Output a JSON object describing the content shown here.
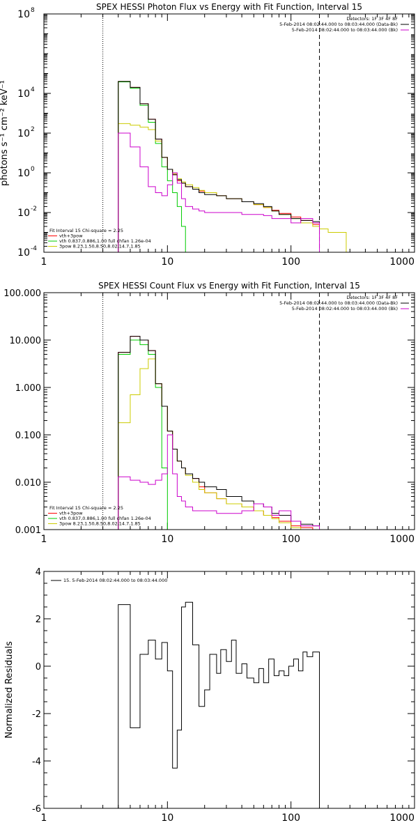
{
  "chart_data": [
    {
      "type": "line",
      "step": true,
      "title": "SPEX HESSI Photon Flux vs Energy with Fit Function, Interval 15",
      "ylabel": "photons s⁻¹ cm⁻² keV⁻¹",
      "xlabel": "",
      "xscale": "log",
      "yscale": "log",
      "xlim": [
        1,
        1000
      ],
      "ylim": [
        0.0001,
        100000000
      ],
      "x_ticks": [
        {
          "v": 1,
          "label": "1"
        },
        {
          "v": 10,
          "label": "10"
        },
        {
          "v": 100,
          "label": "100"
        },
        {
          "v": 1000,
          "label": "1000"
        }
      ],
      "y_ticks": [
        {
          "v": 0.0001,
          "label": "10",
          "sup": "-4"
        },
        {
          "v": 0.01,
          "label": "10",
          "sup": "-2"
        },
        {
          "v": 1,
          "label": "10",
          "sup": "0"
        },
        {
          "v": 100,
          "label": "10",
          "sup": "2"
        },
        {
          "v": 10000,
          "label": "10",
          "sup": "4"
        },
        {
          "v": 100000000,
          "label": "10",
          "sup": "8"
        }
      ],
      "vlines": [
        {
          "x": 3,
          "style": "dotted"
        },
        {
          "x": 170,
          "style": "dashed"
        }
      ],
      "legend_top": [
        {
          "text": "Detectors: 1F 3F 4F 8F",
          "color": "#000000"
        },
        {
          "text": "5-Feb-2014 08:02:44.000 to 08:03:44.000 (Data-Bk)",
          "color": "#000000"
        },
        {
          "text": "5-Feb-2014 08:02:44.000 to 08:03:44.000 (Bk)",
          "color": "#cc00cc"
        }
      ],
      "legend_bottom": [
        {
          "text": "Fit Interval 15   Chi-square = 2.25",
          "color": "#000000"
        },
        {
          "text": "vth+3pow",
          "color": "#ff0000"
        },
        {
          "text": "vth 0.837,0.886,1.00  full chfan 1.26e-04",
          "color": "#00cc00"
        },
        {
          "text": "3pow 8.23,1.50,8.50,8.02,14.7,1.85",
          "color": "#cccc00"
        }
      ],
      "series": [
        {
          "name": "vth+3pow",
          "color": "#ff0000",
          "x": [
            3,
            4,
            5,
            6,
            7,
            8,
            9,
            10,
            11,
            12,
            13,
            14,
            16,
            18,
            20,
            25,
            30,
            40,
            50,
            60,
            70,
            80,
            100,
            120,
            150,
            170
          ],
          "y": [
            0.0001,
            40000,
            20000,
            3000,
            500,
            50,
            6,
            1.5,
            0.8,
            0.4,
            0.3,
            0.2,
            0.15,
            0.12,
            0.1,
            0.07,
            0.05,
            0.035,
            0.025,
            0.018,
            0.013,
            0.009,
            0.006,
            0.004,
            0.0025,
            0.0025
          ]
        },
        {
          "name": "vth",
          "color": "#00cc00",
          "x": [
            3,
            4,
            5,
            6,
            7,
            8,
            9,
            10,
            11,
            12,
            13,
            14
          ],
          "y": [
            0.0001,
            38000,
            18000,
            2500,
            350,
            30,
            2,
            0.4,
            0.1,
            0.02,
            0.002,
            0.0001
          ]
        },
        {
          "name": "3pow",
          "color": "#cccc00",
          "x": [
            3,
            4,
            5,
            6,
            7,
            8,
            9,
            10,
            11,
            12,
            13,
            14,
            16,
            18,
            20,
            25,
            30,
            40,
            50,
            60,
            70,
            80,
            100,
            120,
            150,
            170,
            200,
            280
          ],
          "y": [
            0.0001,
            300,
            250,
            200,
            150,
            40,
            6,
            1.5,
            0.9,
            0.5,
            0.35,
            0.25,
            0.18,
            0.13,
            0.1,
            0.07,
            0.05,
            0.035,
            0.025,
            0.018,
            0.012,
            0.008,
            0.005,
            0.003,
            0.002,
            0.0015,
            0.001,
            0.0001
          ]
        },
        {
          "name": "Data-Bk",
          "color": "#000000",
          "x": [
            3,
            4,
            5,
            6,
            7,
            8,
            9,
            10,
            11,
            12,
            13,
            14,
            16,
            18,
            20,
            25,
            30,
            40,
            50,
            60,
            70,
            80,
            100,
            120,
            150,
            170
          ],
          "y": [
            0.0001,
            40000,
            20000,
            3000,
            500,
            50,
            6,
            1.5,
            0.8,
            0.45,
            0.3,
            0.2,
            0.15,
            0.1,
            0.08,
            0.07,
            0.05,
            0.035,
            0.028,
            0.02,
            0.012,
            0.008,
            0.005,
            0.004,
            0.0035,
            0.003
          ]
        },
        {
          "name": "Bk",
          "color": "#cc00cc",
          "x": [
            3,
            4,
            5,
            6,
            7,
            8,
            9,
            10,
            11,
            12,
            13,
            14,
            16,
            18,
            20,
            25,
            30,
            40,
            50,
            60,
            70,
            80,
            100,
            120,
            150,
            170
          ],
          "y": [
            0.0001,
            100,
            20,
            2,
            0.2,
            0.1,
            0.07,
            0.25,
            1,
            0.3,
            0.05,
            0.02,
            0.015,
            0.012,
            0.01,
            0.01,
            0.01,
            0.008,
            0.008,
            0.007,
            0.005,
            0.005,
            0.003,
            0.005,
            0.003,
            0.0001
          ]
        }
      ]
    },
    {
      "type": "line",
      "step": true,
      "title": "SPEX HESSI Count Flux vs Energy with Fit Function, Interval 15",
      "ylabel": "",
      "xlabel": "",
      "xscale": "log",
      "yscale": "log",
      "xlim": [
        1,
        1000
      ],
      "ylim": [
        0.001,
        100
      ],
      "x_ticks": [
        {
          "v": 1,
          "label": "1"
        },
        {
          "v": 10,
          "label": "10"
        },
        {
          "v": 100,
          "label": "100"
        },
        {
          "v": 1000,
          "label": "1000"
        }
      ],
      "y_ticks": [
        {
          "v": 0.001,
          "label": "0.001"
        },
        {
          "v": 0.01,
          "label": "0.010"
        },
        {
          "v": 0.1,
          "label": "0.100"
        },
        {
          "v": 1,
          "label": "1.000"
        },
        {
          "v": 10,
          "label": "10.000"
        },
        {
          "v": 100,
          "label": "100.000"
        }
      ],
      "vlines": [
        {
          "x": 3,
          "style": "dotted"
        },
        {
          "x": 170,
          "style": "dashed"
        }
      ],
      "legend_top": [
        {
          "text": "Detectors: 1F 3F 4F 8F",
          "color": "#000000"
        },
        {
          "text": "5-Feb-2014 08:02:44.000 to 08:03:44.000 (Data-Bk)",
          "color": "#000000"
        },
        {
          "text": "5-Feb-2014 08:02:44.000 to 08:03:44.000 (Bk)",
          "color": "#cc00cc"
        }
      ],
      "legend_bottom": [
        {
          "text": "Fit Interval 15   Chi-square = 2.25",
          "color": "#000000"
        },
        {
          "text": "vth+3pow",
          "color": "#ff0000"
        },
        {
          "text": "vth 0.837,0.886,1.00  full chfan 1.26e-04",
          "color": "#00cc00"
        },
        {
          "text": "3pow 8.23,1.50,8.50,8.02,14.7,1.85",
          "color": "#cccc00"
        }
      ],
      "series": [
        {
          "name": "vth+3pow",
          "color": "#ff0000",
          "x": [
            3,
            4,
            5,
            6,
            7,
            8,
            9,
            10,
            11,
            12,
            13,
            14,
            16,
            18,
            20,
            25,
            30,
            40,
            50,
            60,
            70,
            80,
            100,
            120,
            150,
            170
          ],
          "y": [
            0.001,
            5.5,
            12,
            10,
            6,
            1.2,
            0.4,
            0.12,
            0.05,
            0.028,
            0.02,
            0.015,
            0.012,
            0.008,
            0.006,
            0.0045,
            0.0035,
            0.003,
            0.0025,
            0.002,
            0.0018,
            0.0015,
            0.0012,
            0.0011,
            0.001,
            0.001
          ]
        },
        {
          "name": "vth",
          "color": "#00cc00",
          "x": [
            3,
            4,
            5,
            6,
            7,
            8,
            9,
            10
          ],
          "y": [
            0.001,
            5,
            10,
            8,
            5,
            1,
            0.02,
            0.001
          ]
        },
        {
          "name": "3pow",
          "color": "#cccc00",
          "x": [
            3,
            4,
            5,
            6,
            7,
            8,
            9,
            10,
            11,
            12,
            13,
            14,
            16,
            18,
            20,
            25,
            30,
            40,
            50,
            60,
            70,
            80,
            100,
            120
          ],
          "y": [
            0.001,
            0.18,
            0.7,
            2.5,
            4,
            1.2,
            0.4,
            0.12,
            0.05,
            0.028,
            0.02,
            0.014,
            0.01,
            0.007,
            0.006,
            0.0045,
            0.0035,
            0.003,
            0.0025,
            0.002,
            0.0017,
            0.0014,
            0.0011,
            0.001
          ]
        },
        {
          "name": "Data-Bk",
          "color": "#000000",
          "x": [
            3,
            4,
            5,
            6,
            7,
            8,
            9,
            10,
            11,
            12,
            13,
            14,
            16,
            18,
            20,
            25,
            30,
            40,
            50,
            60,
            70,
            80,
            100,
            120,
            150,
            170
          ],
          "y": [
            0.001,
            5.5,
            12,
            10,
            6,
            1.2,
            0.4,
            0.12,
            0.05,
            0.028,
            0.02,
            0.015,
            0.012,
            0.01,
            0.008,
            0.007,
            0.005,
            0.004,
            0.0035,
            0.003,
            0.0022,
            0.002,
            0.0015,
            0.0013,
            0.0012,
            0.001
          ]
        },
        {
          "name": "Bk",
          "color": "#cc00cc",
          "x": [
            3,
            4,
            5,
            6,
            7,
            8,
            9,
            10,
            11,
            12,
            13,
            14,
            16,
            18,
            20,
            25,
            30,
            40,
            50,
            60,
            70,
            80,
            100,
            120,
            150,
            170
          ],
          "y": [
            0.001,
            0.013,
            0.011,
            0.01,
            0.009,
            0.011,
            0.015,
            0.1,
            0.015,
            0.005,
            0.004,
            0.003,
            0.0025,
            0.0025,
            0.0025,
            0.0022,
            0.0022,
            0.0025,
            0.0035,
            0.003,
            0.002,
            0.0025,
            0.0015,
            0.0012,
            0.0012,
            0.001
          ]
        }
      ]
    },
    {
      "type": "line",
      "step": true,
      "title": "",
      "ylabel": "Normalized Residuals",
      "xlabel": "",
      "xscale": "log",
      "yscale": "linear",
      "xlim": [
        1,
        1000
      ],
      "ylim": [
        -6,
        4
      ],
      "x_ticks": [
        {
          "v": 1,
          "label": "1"
        },
        {
          "v": 10,
          "label": "10"
        },
        {
          "v": 100,
          "label": "100"
        },
        {
          "v": 1000,
          "label": "1000"
        }
      ],
      "y_ticks": [
        {
          "v": -6,
          "label": "-6"
        },
        {
          "v": -4,
          "label": "-4"
        },
        {
          "v": -2,
          "label": "-2"
        },
        {
          "v": 0,
          "label": "0"
        },
        {
          "v": 2,
          "label": "2"
        },
        {
          "v": 4,
          "label": "4"
        }
      ],
      "vlines": [],
      "legend_top": [],
      "legend_bottom": [],
      "legend_series": {
        "text": "15.  5-Feb-2014 08:02:44.000 to 08:03:44.000",
        "color": "#000000"
      },
      "series": [
        {
          "name": "",
          "color": "#000000",
          "x": [
            3,
            4,
            5,
            6,
            7,
            8,
            9,
            10,
            11,
            12,
            13,
            14,
            16,
            18,
            20,
            22,
            25,
            27,
            30,
            33,
            36,
            40,
            44,
            50,
            55,
            60,
            66,
            73,
            80,
            88,
            96,
            105,
            115,
            125,
            135,
            150,
            170
          ],
          "y": [
            -6,
            2.6,
            -2.6,
            0.5,
            1.1,
            0.3,
            1.0,
            -0.2,
            -4.3,
            -2.7,
            2.5,
            2.7,
            0.9,
            -1.7,
            -1.0,
            0.5,
            -0.3,
            0.7,
            0.2,
            1.1,
            -0.3,
            0.1,
            -0.5,
            -0.7,
            -0.1,
            -0.7,
            0.3,
            -0.4,
            -0.2,
            -0.4,
            0,
            0.3,
            -0.2,
            0.6,
            0.4,
            0.6,
            -6
          ]
        }
      ]
    }
  ]
}
